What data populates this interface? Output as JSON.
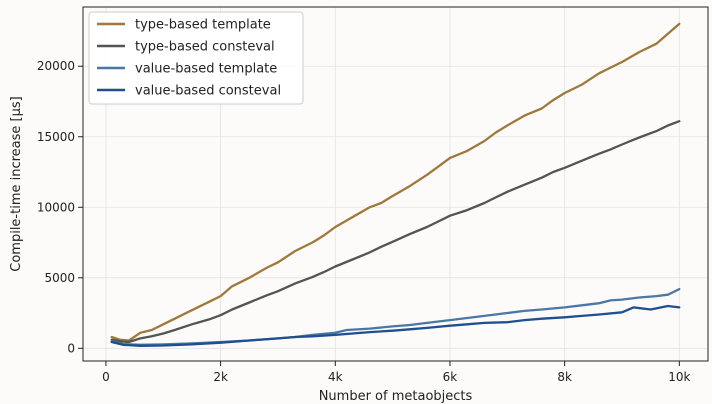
{
  "chart_data": {
    "type": "line",
    "title": "",
    "xlabel": "Number of metaobjects",
    "ylabel": "Compile-time increase [µs]",
    "xlim": [
      -400,
      10500
    ],
    "ylim": [
      -900,
      24200
    ],
    "grid": true,
    "legend_position": "top-left",
    "x_ticks": [
      {
        "value": 0,
        "label": "0"
      },
      {
        "value": 2000,
        "label": "2k"
      },
      {
        "value": 4000,
        "label": "4k"
      },
      {
        "value": 6000,
        "label": "6k"
      },
      {
        "value": 8000,
        "label": "8k"
      },
      {
        "value": 10000,
        "label": "10k"
      }
    ],
    "y_ticks": [
      {
        "value": 0,
        "label": "0"
      },
      {
        "value": 5000,
        "label": "5000"
      },
      {
        "value": 10000,
        "label": "10000"
      },
      {
        "value": 15000,
        "label": "15000"
      },
      {
        "value": 20000,
        "label": "20000"
      }
    ],
    "series": [
      {
        "name": "type-based template",
        "color": "#a0783c",
        "x": [
          100,
          250,
          400,
          600,
          800,
          1000,
          1200,
          1500,
          1800,
          2000,
          2200,
          2500,
          2800,
          3000,
          3300,
          3600,
          3800,
          4000,
          4300,
          4600,
          4800,
          5000,
          5300,
          5600,
          5800,
          6000,
          6300,
          6600,
          6800,
          7000,
          7300,
          7600,
          7800,
          8000,
          8300,
          8600,
          8800,
          9000,
          9300,
          9600,
          9800,
          10000
        ],
        "y": [
          800,
          600,
          550,
          1100,
          1300,
          1700,
          2100,
          2700,
          3300,
          3700,
          4400,
          5000,
          5700,
          6100,
          6900,
          7500,
          8000,
          8600,
          9300,
          10000,
          10300,
          10800,
          11500,
          12300,
          12900,
          13500,
          14000,
          14700,
          15300,
          15800,
          16500,
          17000,
          17600,
          18100,
          18700,
          19500,
          19900,
          20300,
          21000,
          21600,
          22300,
          23000
        ]
      },
      {
        "name": "type-based consteval",
        "color": "#555550",
        "x": [
          100,
          250,
          400,
          600,
          800,
          1000,
          1200,
          1500,
          1800,
          2000,
          2200,
          2500,
          2800,
          3000,
          3300,
          3600,
          3800,
          4000,
          4300,
          4600,
          4800,
          5000,
          5300,
          5600,
          5800,
          6000,
          6300,
          6600,
          6800,
          7000,
          7300,
          7600,
          7800,
          8000,
          8300,
          8600,
          8800,
          9000,
          9300,
          9600,
          9800,
          10000
        ],
        "y": [
          600,
          500,
          450,
          700,
          850,
          1050,
          1300,
          1700,
          2050,
          2350,
          2750,
          3250,
          3750,
          4050,
          4600,
          5050,
          5400,
          5800,
          6300,
          6800,
          7200,
          7550,
          8100,
          8600,
          9000,
          9400,
          9800,
          10300,
          10700,
          11100,
          11600,
          12100,
          12500,
          12800,
          13300,
          13800,
          14100,
          14450,
          14950,
          15400,
          15800,
          16100
        ]
      },
      {
        "name": "value-based template",
        "color": "#4a78a4",
        "x": [
          100,
          300,
          600,
          1000,
          1500,
          2000,
          2500,
          3000,
          3300,
          3600,
          4000,
          4200,
          4600,
          5000,
          5300,
          5600,
          6000,
          6300,
          6600,
          7000,
          7300,
          7600,
          8000,
          8300,
          8600,
          8800,
          9000,
          9300,
          9600,
          9800,
          10000
        ],
        "y": [
          500,
          300,
          250,
          280,
          350,
          450,
          550,
          700,
          800,
          950,
          1100,
          1300,
          1400,
          1550,
          1650,
          1800,
          2000,
          2150,
          2300,
          2500,
          2650,
          2750,
          2900,
          3050,
          3200,
          3400,
          3450,
          3600,
          3700,
          3800,
          4200
        ]
      },
      {
        "name": "value-based consteval",
        "color": "#1f4f8f",
        "x": [
          100,
          300,
          600,
          1000,
          1500,
          2000,
          2500,
          3000,
          3300,
          3600,
          4000,
          4300,
          4600,
          5000,
          5300,
          5600,
          6000,
          6300,
          6600,
          7000,
          7300,
          7600,
          8000,
          8300,
          8600,
          9000,
          9200,
          9500,
          9800,
          10000
        ],
        "y": [
          450,
          250,
          180,
          200,
          280,
          400,
          550,
          700,
          800,
          850,
          950,
          1050,
          1150,
          1250,
          1350,
          1450,
          1600,
          1700,
          1800,
          1850,
          2000,
          2100,
          2200,
          2300,
          2400,
          2550,
          2900,
          2750,
          3000,
          2900
        ]
      }
    ]
  }
}
